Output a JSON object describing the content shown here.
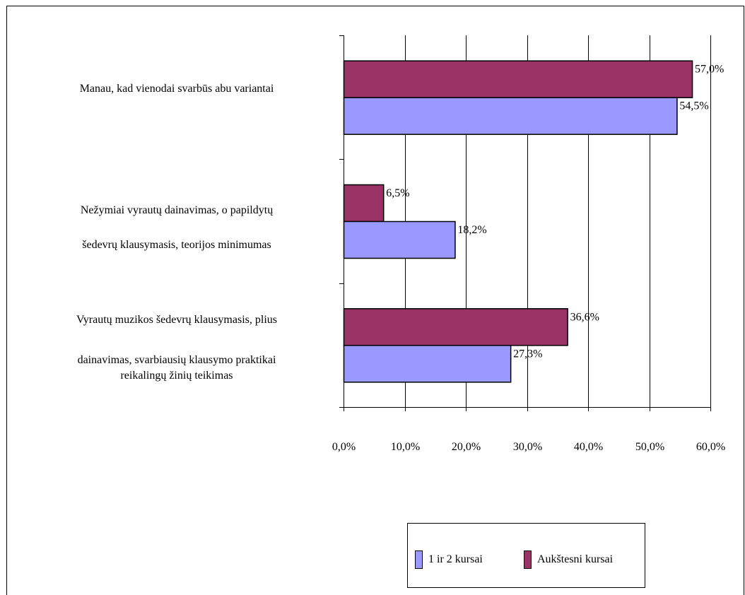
{
  "chart_data": {
    "type": "bar",
    "orientation": "horizontal",
    "categories": [
      {
        "id": "cat-both",
        "lines": [
          "Manau, kad vienodai svarbūs abu variantai"
        ]
      },
      {
        "id": "cat-singing",
        "lines": [
          "Nežymiai vyrautų dainavimas, o papildytų",
          "šedevrų klausymasis, teorijos minimumas"
        ]
      },
      {
        "id": "cat-listening",
        "lines": [
          "Vyrautų muzikos šedevrų klausymasis, plius",
          "dainavimas, svarbiausių klausymo praktikai",
          "reikalingų žinių teikimas"
        ]
      }
    ],
    "series": [
      {
        "name": "Aukštesni kursai",
        "color": "#993366",
        "values": [
          57.0,
          6.5,
          36.6
        ],
        "labels": [
          "57,0%",
          "6,5%",
          "36,6%"
        ]
      },
      {
        "name": "1 ir 2 kursai",
        "color": "#9999ff",
        "values": [
          54.5,
          18.2,
          27.3
        ],
        "labels": [
          "54,5%",
          "18,2%",
          "27,3%"
        ]
      }
    ],
    "xlim": [
      0,
      60
    ],
    "xticks": [
      0,
      10,
      20,
      30,
      40,
      50,
      60
    ],
    "xtick_labels": [
      "0,0%",
      "10,0%",
      "20,0%",
      "30,0%",
      "40,0%",
      "50,0%",
      "60,0%"
    ],
    "grid": "vertical",
    "legend_position": "bottom-right",
    "legend_order": [
      "1 ir 2 kursai",
      "Aukštesni kursai"
    ],
    "title": "",
    "xlabel": "",
    "ylabel": ""
  }
}
